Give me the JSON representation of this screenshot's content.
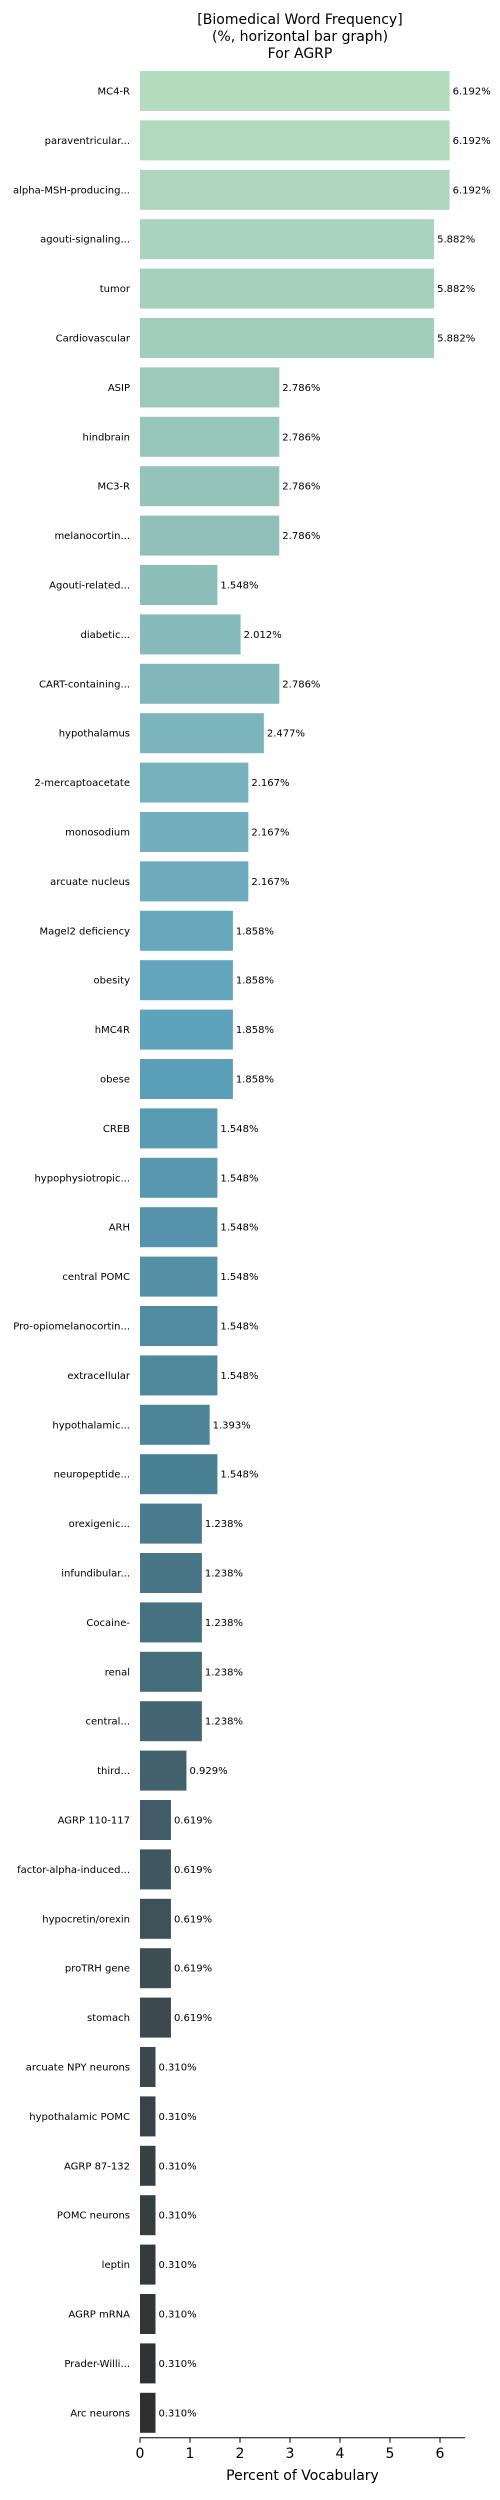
{
  "chart_data": {
    "type": "bar",
    "orientation": "horizontal",
    "title_lines": [
      "[Biomedical Word Frequency]",
      "(%, horizontal bar graph)",
      "For AGRP"
    ],
    "xlabel": "Percent of Vocabulary",
    "ylabel": "",
    "xlim": [
      0,
      6.5
    ],
    "xticks": [
      "0",
      "1",
      "2",
      "3",
      "4",
      "5",
      "6"
    ],
    "grid": false,
    "categories": [
      "MC4-R",
      "paraventricular...",
      "alpha-MSH-producing...",
      "agouti-signaling...",
      "tumor",
      "Cardiovascular",
      "ASIP",
      "hindbrain",
      "MC3-R",
      "melanocortin...",
      "Agouti-related...",
      "diabetic...",
      "CART-containing...",
      "hypothalamus",
      "2-mercaptoacetate",
      "monosodium",
      "arcuate nucleus",
      "Magel2 deficiency",
      "obesity",
      "hMC4R",
      "obese",
      "CREB",
      "hypophysiotropic...",
      "ARH",
      "central POMC",
      "Pro-opiomelanocortin...",
      "extracellular",
      "hypothalamic...",
      "neuropeptide...",
      "orexigenic...",
      "infundibular...",
      "Cocaine-",
      "renal",
      "central...",
      "third...",
      "AGRP 110-117",
      "factor-alpha-induced...",
      "hypocretin/orexin",
      "proTRH gene",
      "stomach",
      "arcuate NPY neurons",
      "hypothalamic POMC",
      "AGRP 87-132",
      "POMC neurons",
      "leptin",
      "AGRP mRNA",
      "Prader-Willi...",
      "Arc neurons"
    ],
    "values": [
      6.192,
      6.192,
      6.192,
      5.882,
      5.882,
      5.882,
      2.786,
      2.786,
      2.786,
      2.786,
      1.548,
      2.012,
      2.786,
      2.477,
      2.167,
      2.167,
      2.167,
      1.858,
      1.858,
      1.858,
      1.858,
      1.548,
      1.548,
      1.548,
      1.548,
      1.548,
      1.548,
      1.393,
      1.548,
      1.238,
      1.238,
      1.238,
      1.238,
      1.238,
      0.929,
      0.619,
      0.619,
      0.619,
      0.619,
      0.619,
      0.31,
      0.31,
      0.31,
      0.31,
      0.31,
      0.31,
      0.31,
      0.31
    ],
    "value_labels": [
      "6.192%",
      "6.192%",
      "6.192%",
      "5.882%",
      "5.882%",
      "5.882%",
      "2.786%",
      "2.786%",
      "2.786%",
      "2.786%",
      "1.548%",
      "2.012%",
      "2.786%",
      "2.477%",
      "2.167%",
      "2.167%",
      "2.167%",
      "1.858%",
      "1.858%",
      "1.858%",
      "1.858%",
      "1.548%",
      "1.548%",
      "1.548%",
      "1.548%",
      "1.548%",
      "1.548%",
      "1.393%",
      "1.548%",
      "1.238%",
      "1.238%",
      "1.238%",
      "1.238%",
      "1.238%",
      "0.929%",
      "0.619%",
      "0.619%",
      "0.619%",
      "0.619%",
      "0.619%",
      "0.310%",
      "0.310%",
      "0.310%",
      "0.310%",
      "0.310%",
      "0.310%",
      "0.310%",
      "0.310%"
    ],
    "color_gradient": [
      "#b5dcbe",
      "#8fbfb9",
      "#5ea3bd",
      "#4a7f92",
      "#3e4f55",
      "#2f2f2f"
    ]
  }
}
